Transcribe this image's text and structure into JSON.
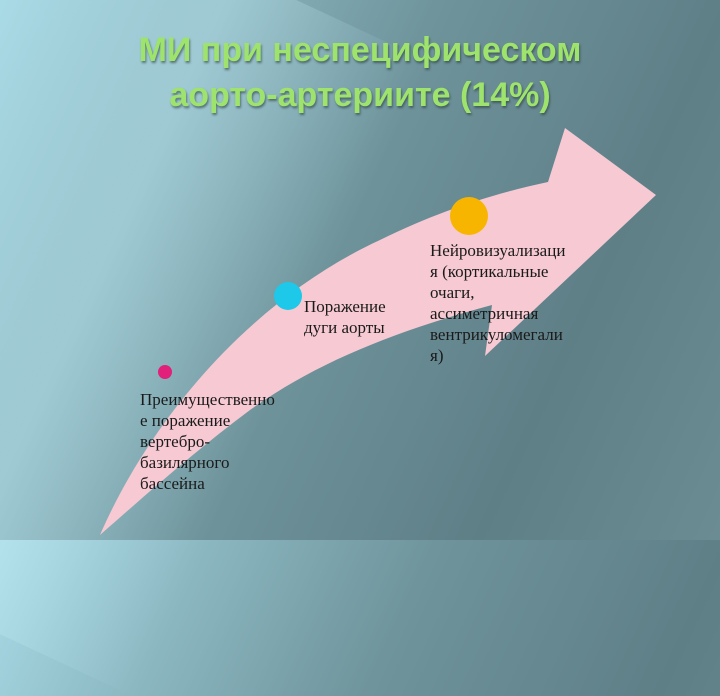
{
  "title": {
    "line1": "МИ при неспецифическом",
    "line2": "аорто-артериите (14%)"
  },
  "colors": {
    "arrow": "#f6c9d3",
    "title": "#9ee36c",
    "marker1": "#e0207a",
    "marker2": "#1ec8e8",
    "marker3": "#f7b500"
  },
  "stages": [
    {
      "label": "Преимущественно\nе поражение\nвертебро-\nбазилярного\nбассейна"
    },
    {
      "label": "Поражение\nдуги аорты"
    },
    {
      "label": "Нейровизуализаци\nя (кортикальные\nочаги,\nассиметричная\nвентрикуломегали\nя)"
    }
  ]
}
